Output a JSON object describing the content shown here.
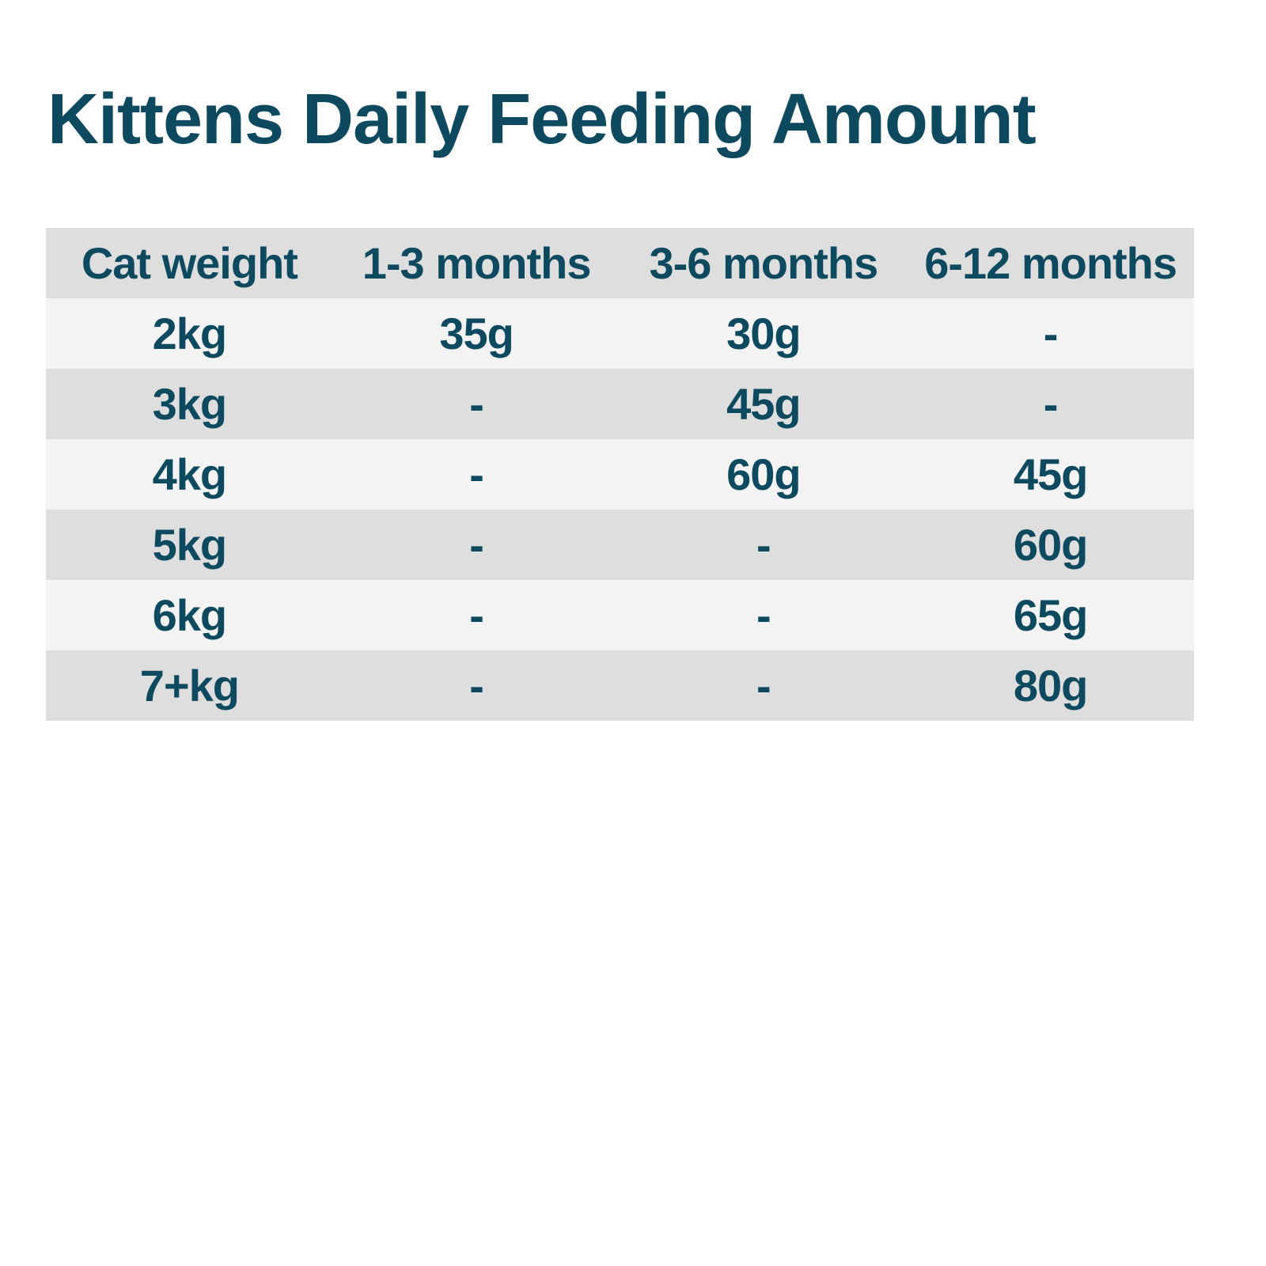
{
  "title": "Kittens Daily Feeding Amount",
  "table": {
    "headers": [
      "Cat weight",
      "1-3 months",
      "3-6 months",
      "6-12 months"
    ],
    "rows": [
      [
        "2kg",
        "35g",
        "30g",
        "-"
      ],
      [
        "3kg",
        "-",
        "45g",
        "-"
      ],
      [
        "4kg",
        "-",
        "60g",
        "45g"
      ],
      [
        "5kg",
        "-",
        "-",
        "60g"
      ],
      [
        "6kg",
        "-",
        "-",
        "65g"
      ],
      [
        "7+kg",
        "-",
        "-",
        "80g"
      ]
    ]
  },
  "colors": {
    "text": "#0e4a5f",
    "header_bg": "#dedede",
    "row_light": "#f3f3f3",
    "row_dark": "#dedede"
  }
}
